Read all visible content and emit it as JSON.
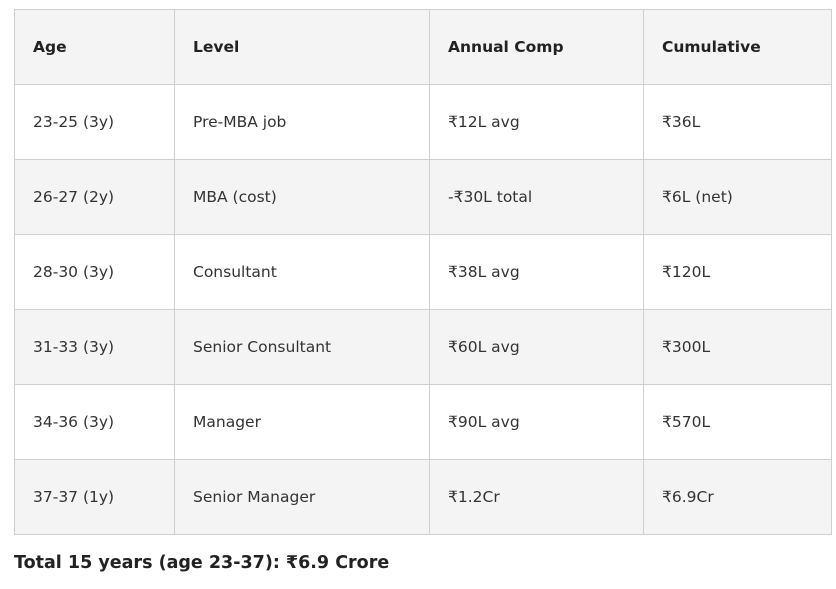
{
  "table": {
    "headers": [
      "Age",
      "Level",
      "Annual Comp",
      "Cumulative"
    ],
    "rows": [
      [
        "23-25 (3y)",
        "Pre-MBA job",
        "₹12L avg",
        "₹36L"
      ],
      [
        "26-27 (2y)",
        "MBA (cost)",
        "-₹30L total",
        "₹6L (net)"
      ],
      [
        "28-30 (3y)",
        "Consultant",
        "₹38L avg",
        "₹120L"
      ],
      [
        "31-33 (3y)",
        "Senior Consultant",
        "₹60L avg",
        "₹300L"
      ],
      [
        "34-36 (3y)",
        "Manager",
        "₹90L avg",
        "₹570L"
      ],
      [
        "37-37 (1y)",
        "Senior Manager",
        "₹1.2Cr",
        "₹6.9Cr"
      ]
    ]
  },
  "summary": {
    "total": "Total 15 years (age 23-37): ₹6.9 Crore"
  },
  "colors": {
    "header_bg": "#f4f4f4",
    "border": "#cfcfcf",
    "text": "#333333"
  }
}
